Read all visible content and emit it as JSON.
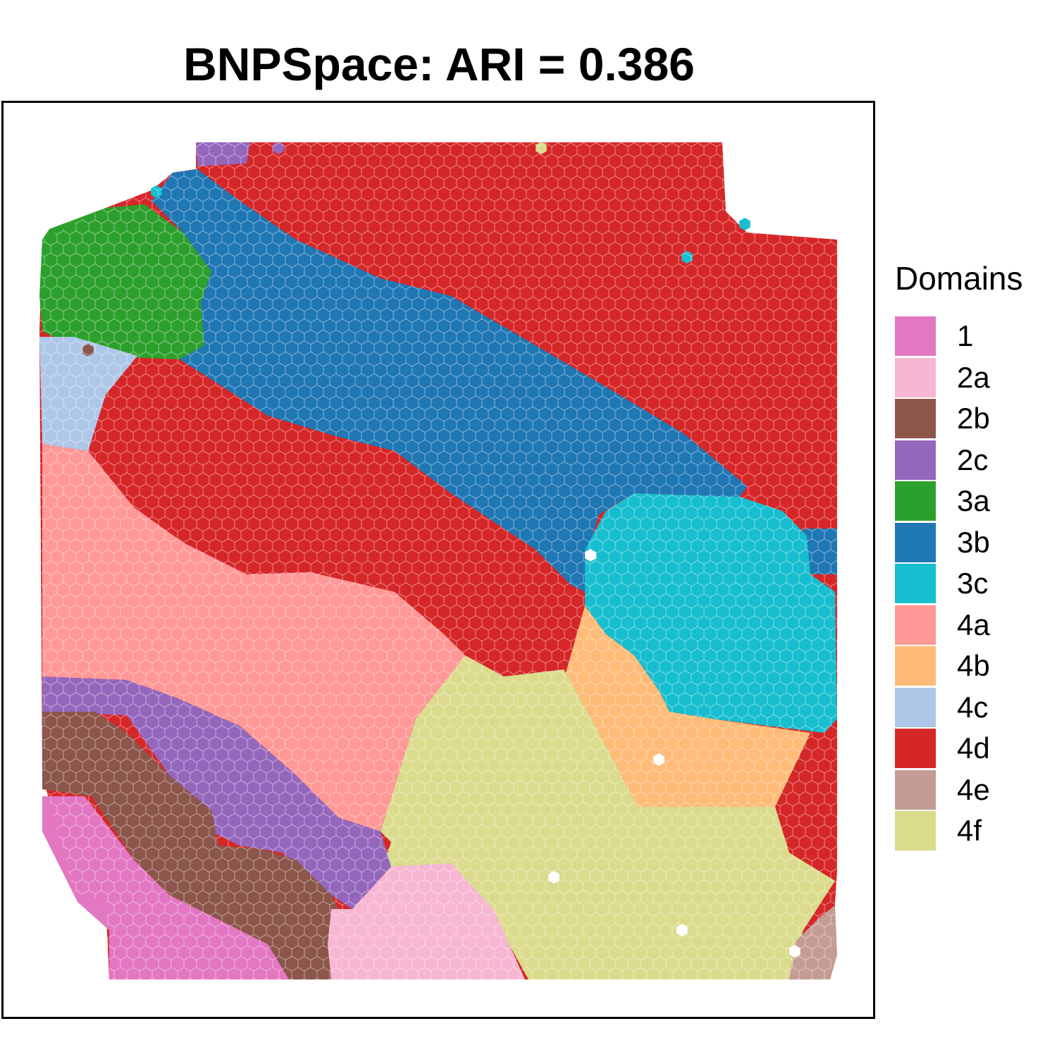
{
  "chart_data": {
    "type": "spatial-hex",
    "title": "BNPSpace: ARI = 0.386",
    "legend": {
      "title": "Domains",
      "position": "right",
      "entries": [
        {
          "label": "1",
          "color": "#E377C2"
        },
        {
          "label": "2a",
          "color": "#F7B6D2"
        },
        {
          "label": "2b",
          "color": "#8C564B"
        },
        {
          "label": "2c",
          "color": "#9467BD"
        },
        {
          "label": "3a",
          "color": "#2CA02C"
        },
        {
          "label": "3b",
          "color": "#1F77B4"
        },
        {
          "label": "3c",
          "color": "#17BECF"
        },
        {
          "label": "4a",
          "color": "#FF9896"
        },
        {
          "label": "4b",
          "color": "#FFBB78"
        },
        {
          "label": "4c",
          "color": "#AEC7E8"
        },
        {
          "label": "4d",
          "color": "#D62728"
        },
        {
          "label": "4e",
          "color": "#C49C94"
        },
        {
          "label": "4f",
          "color": "#DBDB8D"
        }
      ]
    },
    "axes": "none",
    "grid": false
  }
}
